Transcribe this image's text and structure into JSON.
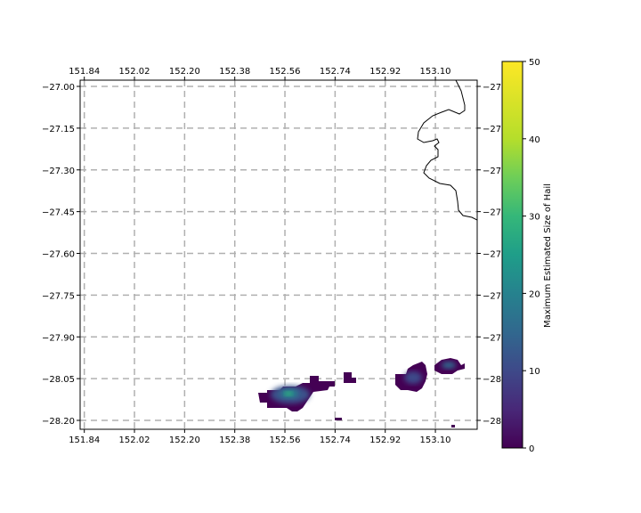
{
  "map": {
    "top_ticks": [
      "151.84",
      "152.02",
      "152.20",
      "152.38",
      "152.56",
      "152.74",
      "152.92",
      "153.10"
    ],
    "bottom_ticks": [
      "151.84",
      "152.02",
      "152.20",
      "152.38",
      "152.56",
      "152.74",
      "152.92",
      "153.10"
    ],
    "left_ticks": [
      "−27.00",
      "−27.15",
      "−27.30",
      "−27.45",
      "−27.60",
      "−27.75",
      "−27.90",
      "−28.05",
      "−28.20"
    ],
    "right_ticks": [
      "−27.",
      "−27.",
      "−27.",
      "−27.",
      "−27.",
      "−27.",
      "−27.",
      "−28.",
      "−28."
    ],
    "lon_values": [
      151.84,
      152.02,
      152.2,
      152.38,
      152.56,
      152.74,
      152.92,
      153.1
    ],
    "lat_values": [
      -27.0,
      -27.15,
      -27.3,
      -27.45,
      -27.6,
      -27.75,
      -27.9,
      -28.05,
      -28.2
    ],
    "lon_range": [
      151.825,
      153.25
    ],
    "lat_range": [
      -27.975,
      -28.235
    ],
    "gridlines": true,
    "coastline_color": "#000000"
  },
  "colorbar": {
    "label": "Maximum Estimated Size of Hail",
    "ticks": [
      "0",
      "10",
      "20",
      "30",
      "40",
      "50"
    ],
    "tick_values": [
      0,
      10,
      20,
      30,
      40,
      50
    ],
    "range": [
      0,
      50
    ],
    "colormap": "viridis"
  },
  "chart_data": {
    "type": "heatmap",
    "colorbar_label": "Maximum Estimated Size of Hail",
    "value_range": [
      0,
      50
    ],
    "cells": [
      {
        "lon": 152.56,
        "lat": -28.12,
        "value": 20
      },
      {
        "lon": 152.52,
        "lat": -28.13,
        "value": 10
      },
      {
        "lon": 152.6,
        "lat": -28.11,
        "value": 12
      },
      {
        "lon": 152.64,
        "lat": -28.1,
        "value": 6
      },
      {
        "lon": 152.68,
        "lat": -28.09,
        "value": 4
      },
      {
        "lon": 152.47,
        "lat": -28.14,
        "value": 3
      },
      {
        "lon": 152.77,
        "lat": -28.06,
        "value": 2
      },
      {
        "lon": 152.99,
        "lat": -28.04,
        "value": 12
      },
      {
        "lon": 153.12,
        "lat": -27.99,
        "value": 14
      },
      {
        "lon": 152.74,
        "lat": -28.2,
        "value": 1
      },
      {
        "lon": 153.12,
        "lat": -28.23,
        "value": 1
      }
    ]
  }
}
